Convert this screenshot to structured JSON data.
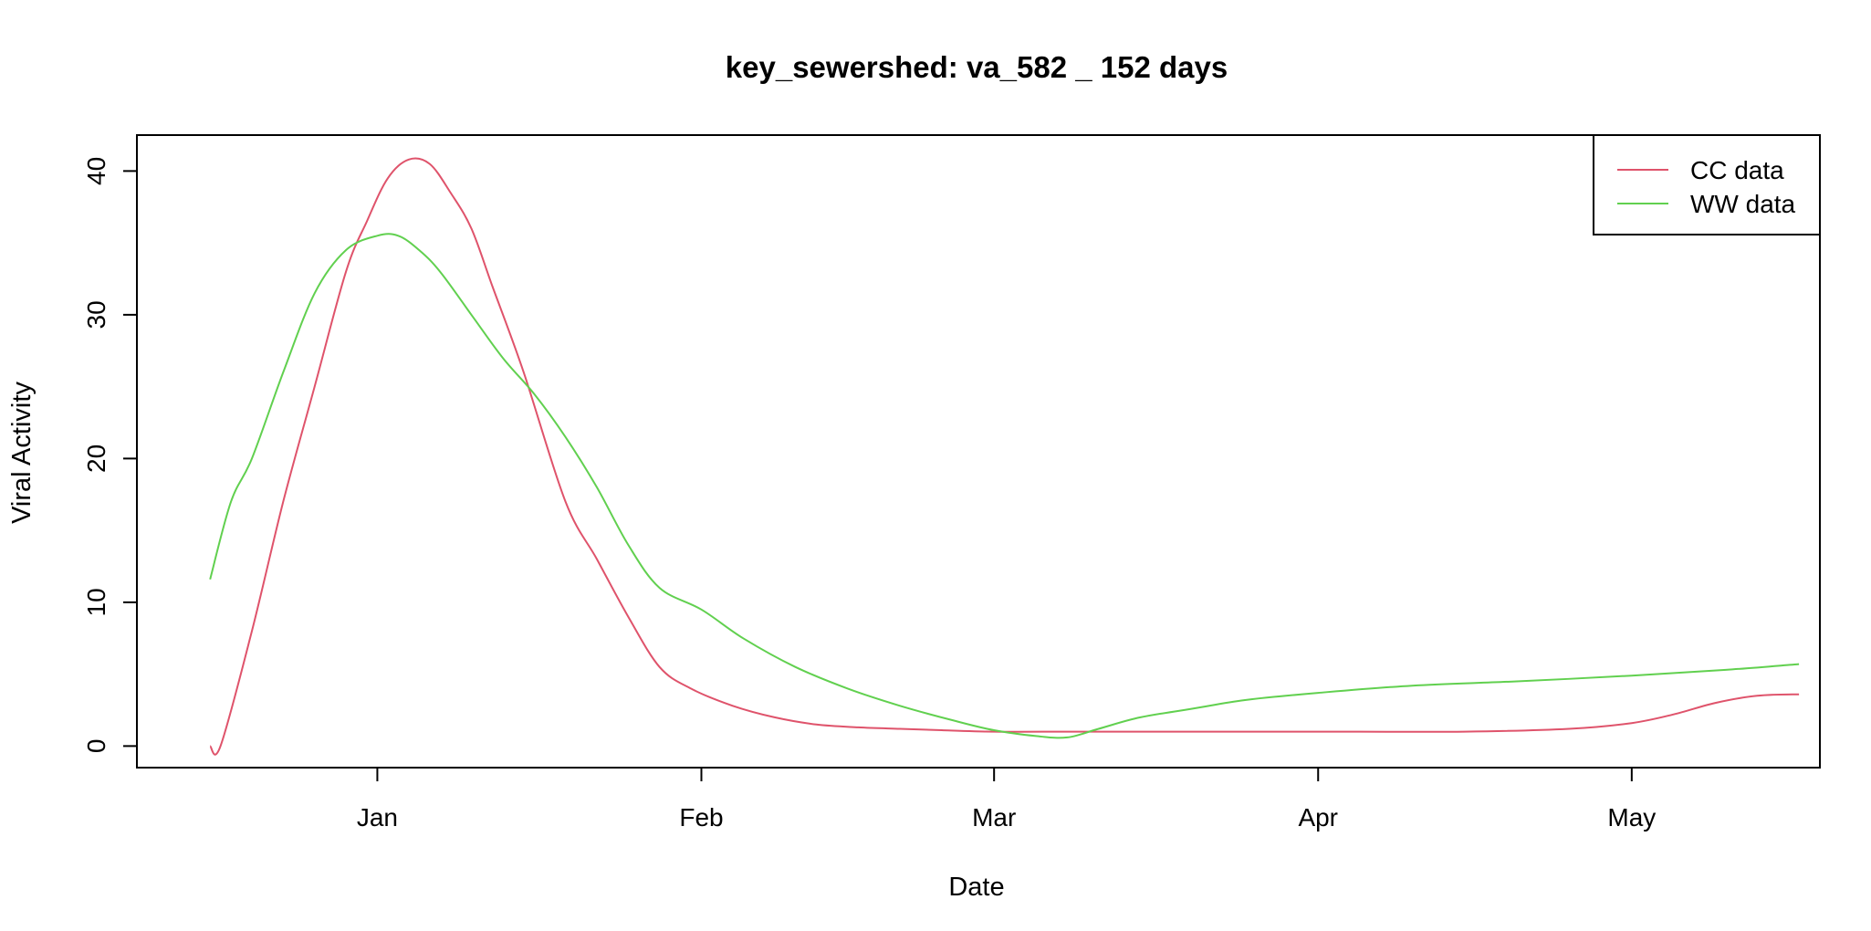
{
  "chart_data": {
    "type": "line",
    "title": "key_sewershed:  va_582 _ 152  days",
    "xlabel": "Date",
    "ylabel": "Viral Activity",
    "x_tick_labels": [
      "Jan",
      "Feb",
      "Mar",
      "Apr",
      "May"
    ],
    "x_ticks": [
      "2022-01-01",
      "2022-02-01",
      "2022-03-01",
      "2022-04-01",
      "2022-05-01"
    ],
    "xlim": [
      "2021-12-09",
      "2022-05-19"
    ],
    "ylim": [
      -1.5,
      42.5
    ],
    "y_ticks": [
      0,
      10,
      20,
      30,
      40
    ],
    "legend_position": "top-right",
    "grid": false,
    "series": [
      {
        "name": "CC data",
        "color": "#DF536B",
        "x": [
          "2021-12-16",
          "2021-12-17",
          "2021-12-20",
          "2021-12-23",
          "2021-12-26",
          "2021-12-29",
          "2021-12-31",
          "2022-01-02",
          "2022-01-04",
          "2022-01-06",
          "2022-01-08",
          "2022-01-10",
          "2022-01-12",
          "2022-01-15",
          "2022-01-19",
          "2022-01-22",
          "2022-01-25",
          "2022-01-28",
          "2022-01-31",
          "2022-02-04",
          "2022-02-08",
          "2022-02-12",
          "2022-02-16",
          "2022-02-20",
          "2022-02-24",
          "2022-03-01",
          "2022-03-08",
          "2022-03-15",
          "2022-03-25",
          "2022-04-05",
          "2022-04-15",
          "2022-04-25",
          "2022-05-01",
          "2022-05-05",
          "2022-05-09",
          "2022-05-13",
          "2022-05-17"
        ],
        "y": [
          0,
          0,
          8,
          17,
          25,
          33,
          36.5,
          39.5,
          40.8,
          40.5,
          38.5,
          36,
          32,
          26,
          17,
          13,
          9,
          5.5,
          4,
          2.8,
          2,
          1.5,
          1.3,
          1.2,
          1.1,
          1.0,
          1.0,
          1.0,
          1.0,
          1.0,
          1.0,
          1.2,
          1.6,
          2.2,
          3.0,
          3.5,
          3.6
        ]
      },
      {
        "name": "WW data",
        "color": "#61D04F",
        "x": [
          "2021-12-16",
          "2021-12-18",
          "2021-12-20",
          "2021-12-23",
          "2021-12-26",
          "2021-12-29",
          "2022-01-01",
          "2022-01-03",
          "2022-01-05",
          "2022-01-07",
          "2022-01-10",
          "2022-01-13",
          "2022-01-16",
          "2022-01-19",
          "2022-01-22",
          "2022-01-25",
          "2022-01-28",
          "2022-02-01",
          "2022-02-05",
          "2022-02-10",
          "2022-02-15",
          "2022-02-20",
          "2022-02-25",
          "2022-03-01",
          "2022-03-05",
          "2022-03-08",
          "2022-03-11",
          "2022-03-15",
          "2022-03-20",
          "2022-03-25",
          "2022-04-01",
          "2022-04-10",
          "2022-04-20",
          "2022-05-01",
          "2022-05-10",
          "2022-05-17"
        ],
        "y": [
          11.6,
          17,
          20,
          26,
          31.5,
          34.5,
          35.5,
          35.5,
          34.5,
          33,
          30,
          27,
          24.5,
          21.5,
          18,
          14,
          11,
          9.5,
          7.5,
          5.5,
          4,
          2.8,
          1.8,
          1.1,
          0.7,
          0.6,
          1.2,
          2,
          2.6,
          3.2,
          3.7,
          4.2,
          4.5,
          4.9,
          5.3,
          5.7
        ]
      }
    ]
  }
}
